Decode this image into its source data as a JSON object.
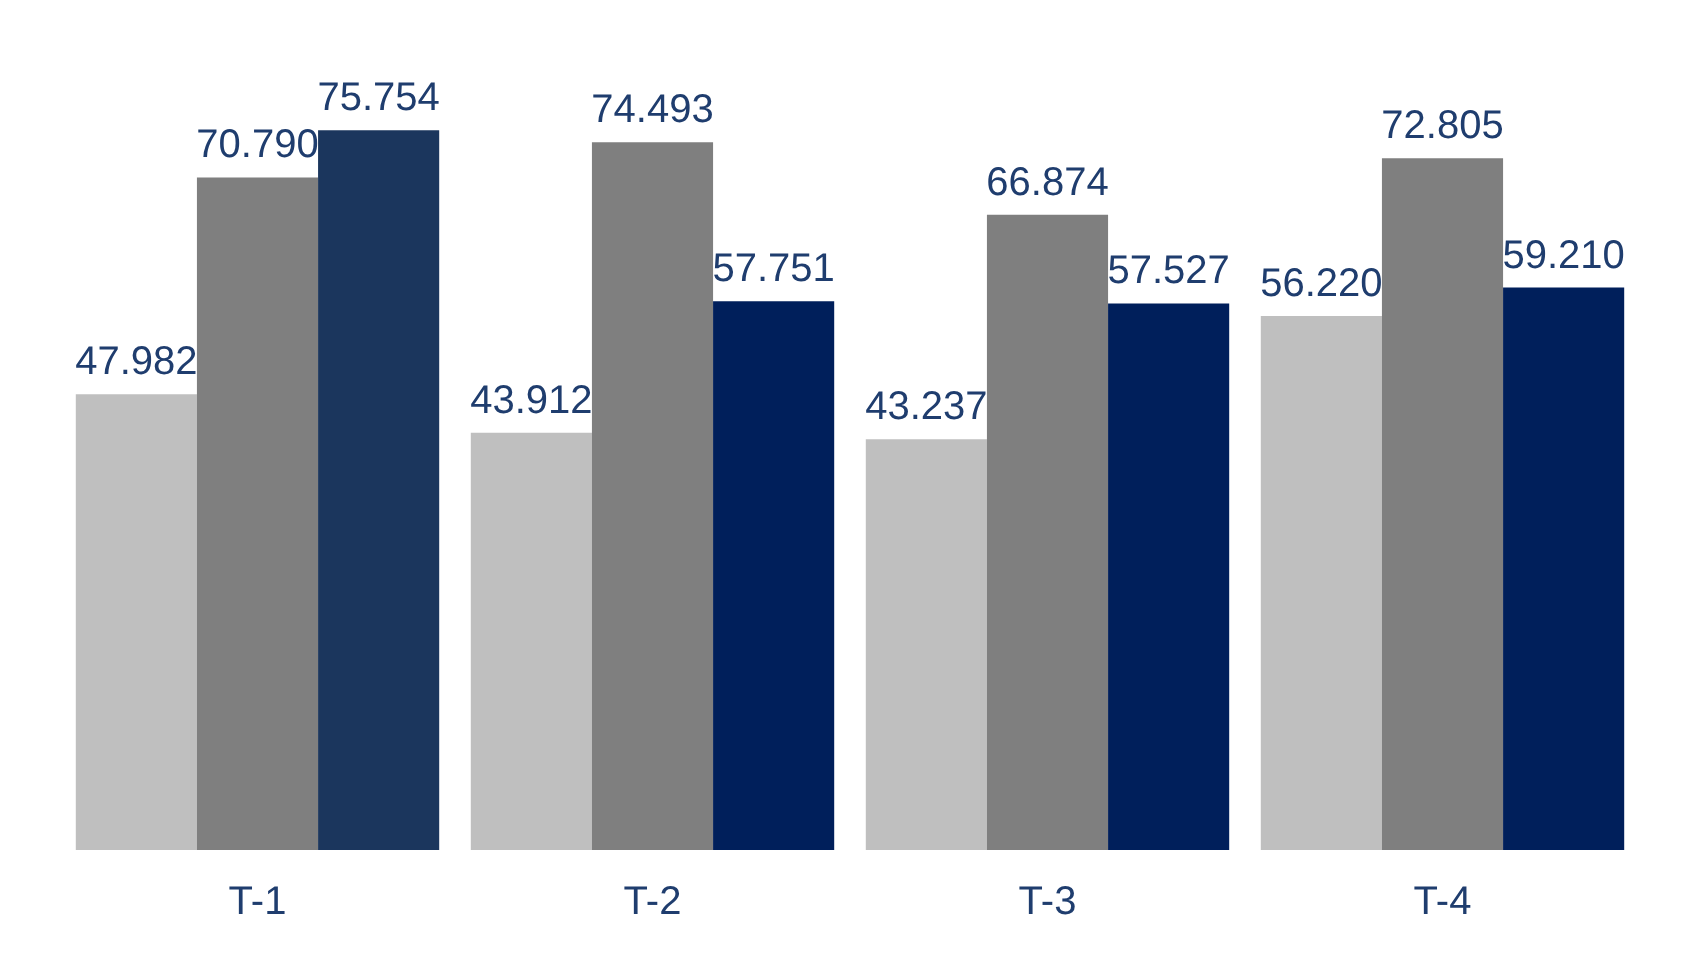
{
  "chart_data": {
    "type": "bar",
    "categories": [
      "T-1",
      "T-2",
      "T-3",
      "T-4"
    ],
    "series": [
      {
        "color": "#bfbfbf",
        "values": [
          47.982,
          43.912,
          43.237,
          56.22
        ],
        "value_labels": [
          "47.982",
          "43.912",
          "43.237",
          "56.220"
        ]
      },
      {
        "color": "#7f7f7f",
        "values": [
          70.79,
          74.493,
          66.874,
          72.805
        ],
        "value_labels": [
          "70.790",
          "74.493",
          "66.874",
          "72.805"
        ]
      },
      {
        "colors": [
          "#1b365d",
          "#001f5b",
          "#001f5b",
          "#001f5b"
        ],
        "values": [
          75.754,
          57.751,
          57.527,
          59.21
        ],
        "value_labels": [
          "75.754",
          "57.751",
          "57.527",
          "59.210"
        ]
      }
    ],
    "grid": false
  }
}
